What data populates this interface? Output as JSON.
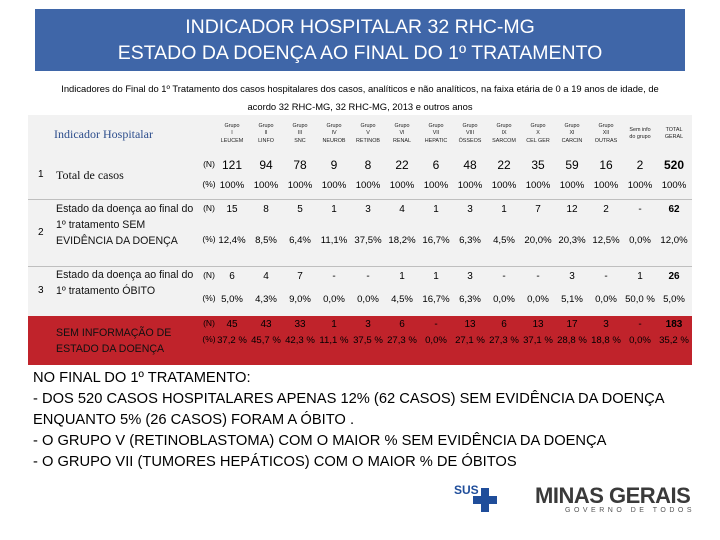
{
  "title": {
    "line1": "INDICADOR HOSPITALAR 32 RHC-MG",
    "line2": "ESTADO DA DOENÇA AO FINAL DO 1º TRATAMENTO"
  },
  "subtitle": {
    "line1": "Indicadores do Final do  1º Tratamento dos casos hospitalares  dos casos, analíticos e não analíticos, na  faixa etária de 0 a 19 anos de idade, de",
    "line2": "acordo  32 RHC-MG, 32 RHC-MG, 2013 e outros anos"
  },
  "table": {
    "header_title": "Indicador Hospitalar",
    "groups": [
      {
        "l1": "Grupo",
        "l2": "I",
        "l3": "LEUCEM"
      },
      {
        "l1": "Grupo",
        "l2": "II",
        "l3": "LINFO"
      },
      {
        "l1": "Grupo",
        "l2": "III",
        "l3": "SNC"
      },
      {
        "l1": "Grupo",
        "l2": "IV",
        "l3": "NEUROB"
      },
      {
        "l1": "Grupo",
        "l2": "V",
        "l3": "RETINOB"
      },
      {
        "l1": "Grupo",
        "l2": "VI",
        "l3": "RENAL"
      },
      {
        "l1": "Grupo",
        "l2": "VII",
        "l3": "HEPATIC"
      },
      {
        "l1": "Grupo",
        "l2": "VIII",
        "l3": "ÓSSEOS"
      },
      {
        "l1": "Grupo",
        "l2": "IX",
        "l3": "SARCOM"
      },
      {
        "l1": "Grupo",
        "l2": "X",
        "l3": "CEL GER"
      },
      {
        "l1": "Grupo",
        "l2": "XI",
        "l3": "CARCIN"
      },
      {
        "l1": "Grupo",
        "l2": "XII",
        "l3": "OUTRAS"
      },
      {
        "l1": "Sem info",
        "l2": "do grupo",
        "l3": ""
      },
      {
        "l1": "TOTAL",
        "l2": "GERAL",
        "l3": ""
      }
    ],
    "rows": [
      {
        "num": "1",
        "label": "Total de casos",
        "n_unit": "(N)",
        "p_unit": "(%)",
        "n": [
          "121",
          "94",
          "78",
          "9",
          "8",
          "22",
          "6",
          "48",
          "22",
          "35",
          "59",
          "16",
          "2",
          "520"
        ],
        "p": [
          "100%",
          "100%",
          "100%",
          "100%",
          "100%",
          "100%",
          "100%",
          "100%",
          "100%",
          "100%",
          "100%",
          "100%",
          "100%",
          "100%"
        ]
      },
      {
        "num": "2",
        "label": "Estado da doença ao final do 1º tratamento SEM EVIDÊNCIA DA DOENÇA",
        "n_unit": "(N)",
        "p_unit": "(%)",
        "n": [
          "15",
          "8",
          "5",
          "1",
          "3",
          "4",
          "1",
          "3",
          "1",
          "7",
          "12",
          "2",
          "-",
          "62"
        ],
        "p": [
          "12,4%",
          "8,5%",
          "6,4%",
          "11,1%",
          "37,5%",
          "18,2%",
          "16,7%",
          "6,3%",
          "4,5%",
          "20,0%",
          "20,3%",
          "12,5%",
          "0,0%",
          "12,0%"
        ]
      },
      {
        "num": "3",
        "label": "Estado da doença ao final do 1º tratamento ÓBITO",
        "n_unit": "(N)",
        "p_unit": "(%)",
        "n": [
          "6",
          "4",
          "7",
          "-",
          "-",
          "1",
          "1",
          "3",
          "-",
          "-",
          "3",
          "-",
          "1",
          "26"
        ],
        "p": [
          "5,0%",
          "4,3%",
          "9,0%",
          "0,0%",
          "0,0%",
          "4,5%",
          "16,7%",
          "6,3%",
          "0,0%",
          "0,0%",
          "5,1%",
          "0,0%",
          "50,0 %",
          "5,0%"
        ]
      },
      {
        "num": "",
        "label": "SEM INFORMAÇÃO DE ESTADO DA DOENÇA",
        "n_unit": "(N)",
        "p_unit": "(%)",
        "n": [
          "45",
          "43",
          "33",
          "1",
          "3",
          "6",
          "-",
          "13",
          "6",
          "13",
          "17",
          "3",
          "-",
          "183"
        ],
        "p": [
          "37,2 %",
          "45,7 %",
          "42,3 %",
          "11,1 %",
          "37,5 %",
          "27,3 %",
          "0,0%",
          "27,1 %",
          "27,3 %",
          "37,1 %",
          "28,8 %",
          "18,8 %",
          "0,0%",
          "35,2 %"
        ]
      }
    ]
  },
  "note": {
    "line1": "NO FINAL DO 1º TRATAMENTO:",
    "line2": "- DOS 520 CASOS HOSPITALARES APENAS 12% (62 CASOS) SEM EVIDÊNCIA DA DOENÇA",
    "line3": "ENQUANTO  5% (26 CASOS) FORAM A ÓBITO .",
    "line4": "- O GRUPO V (RETINOBLASTOMA) COM O MAIOR % SEM EVIDÊNCIA DA DOENÇA",
    "line5": "- O GRUPO VII (TUMORES HEPÁTICOS) COM O MAIOR % DE ÓBITOS"
  },
  "footer": {
    "sus": "SUS",
    "minas": "MINAS GERAIS",
    "minas_sub": "GOVERNO DE TODOS"
  },
  "colors": {
    "title_bg": "#3f66a8",
    "red_row": "#c0232b",
    "table_bg": "#f2f2f2"
  }
}
